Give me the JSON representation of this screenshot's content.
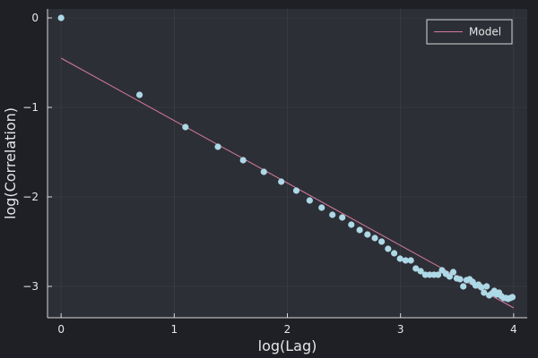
{
  "colors": {
    "background": "#1f2026",
    "plot_area": "#2d2f37",
    "points": "#add8e6",
    "model_line": "#d47b9b"
  },
  "chart_data": {
    "type": "scatter",
    "xlabel": "log(Lag)",
    "ylabel": "log(Correlation)",
    "xlim": [
      -0.12,
      4.12
    ],
    "ylim": [
      -3.35,
      0.1
    ],
    "xticks": [
      0,
      1,
      2,
      3,
      4
    ],
    "yticks": [
      0,
      -1,
      -2,
      -3
    ],
    "grid": true,
    "legend": {
      "position": "top-right",
      "entries": [
        "Model"
      ]
    },
    "series": [
      {
        "kind": "scatter",
        "x": [
          0.0,
          0.693,
          1.099,
          1.386,
          1.609,
          1.792,
          1.946,
          2.079,
          2.197,
          2.303,
          2.398,
          2.485,
          2.565,
          2.639,
          2.708,
          2.773,
          2.833,
          2.89,
          2.944,
          2.996,
          3.045,
          3.091,
          3.135,
          3.178,
          3.219,
          3.258,
          3.296,
          3.332,
          3.367,
          3.401,
          3.434,
          3.466,
          3.497,
          3.526,
          3.555,
          3.584,
          3.611,
          3.638,
          3.664,
          3.689,
          3.714,
          3.738,
          3.761,
          3.784,
          3.807,
          3.829,
          3.85,
          3.871,
          3.892,
          3.912,
          3.932,
          3.951,
          3.97,
          3.989
        ],
        "y": [
          0.0,
          -0.86,
          -1.22,
          -1.44,
          -1.59,
          -1.72,
          -1.83,
          -1.93,
          -2.04,
          -2.12,
          -2.2,
          -2.23,
          -2.31,
          -2.37,
          -2.42,
          -2.46,
          -2.5,
          -2.58,
          -2.63,
          -2.69,
          -2.71,
          -2.71,
          -2.8,
          -2.83,
          -2.87,
          -2.87,
          -2.87,
          -2.87,
          -2.82,
          -2.86,
          -2.89,
          -2.84,
          -2.91,
          -2.92,
          -3.0,
          -2.93,
          -2.92,
          -2.95,
          -2.99,
          -2.98,
          -3.01,
          -3.07,
          -3.0,
          -3.1,
          -3.08,
          -3.05,
          -3.09,
          -3.07,
          -3.11,
          -3.13,
          -3.13,
          -3.14,
          -3.13,
          -3.12
        ]
      },
      {
        "kind": "line",
        "name": "Model",
        "x": [
          0.0,
          4.0
        ],
        "y": [
          -0.45,
          -3.24
        ]
      }
    ]
  }
}
